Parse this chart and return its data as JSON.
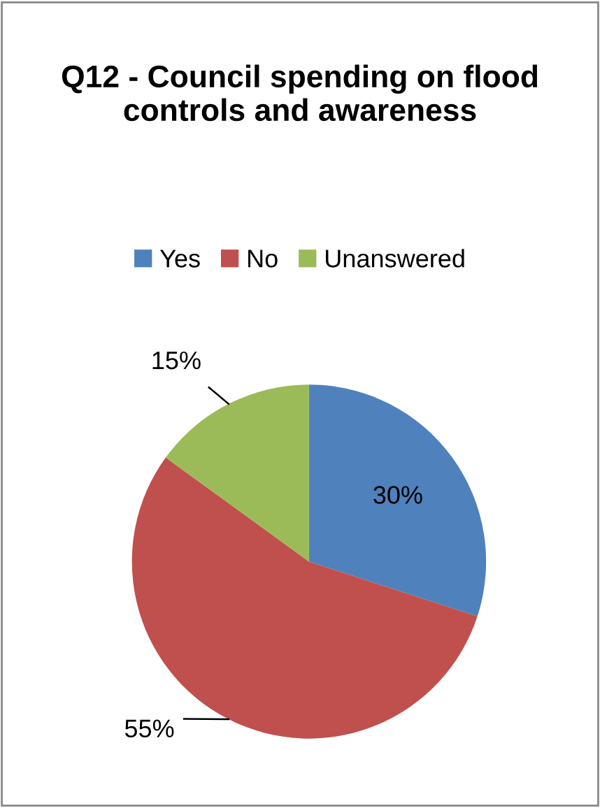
{
  "chart_data": {
    "type": "pie",
    "title": "Q12 - Council spending on flood controls and awareness",
    "categories": [
      "Yes",
      "No",
      "Unanswered"
    ],
    "values": [
      30,
      55,
      15
    ],
    "colors": [
      "#4f81bd",
      "#c0504d",
      "#9bbb59"
    ],
    "value_labels": [
      "30%",
      "55%",
      "15%"
    ],
    "legend": "top"
  }
}
